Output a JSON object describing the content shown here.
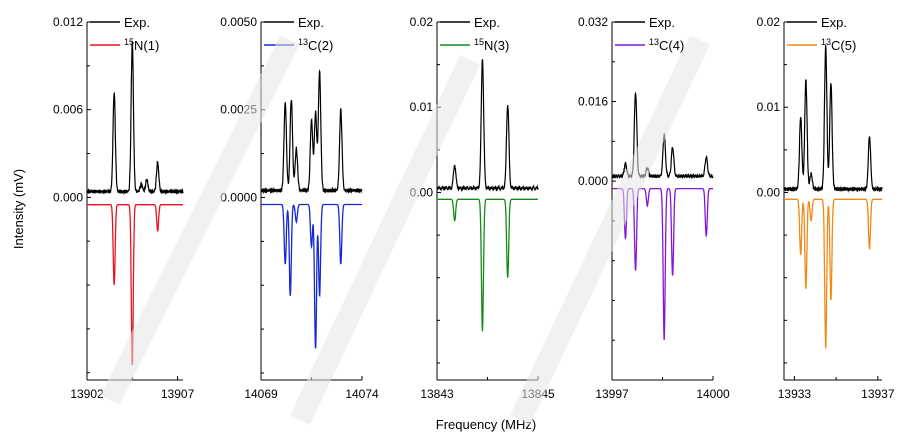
{
  "chart_data": {
    "type": "line",
    "ylabel": "Intensity (mV)",
    "xlabel": "Frequency (MHz)",
    "panels": [
      {
        "id": "15N(1)",
        "ylim": [
          -0.0125,
          0.012
        ],
        "yticks": [
          0.0,
          0.006,
          0.012
        ],
        "ytick_labels": [
          "0.000",
          "0.006",
          "0.012"
        ],
        "xlim": [
          13902,
          13907.3
        ],
        "xticks": [
          13902,
          13907
        ],
        "xtick_labels": [
          "13902",
          "13907"
        ],
        "exp_offset": 0.0004,
        "sim_offset": -0.0005,
        "legend": {
          "exp": "Exp.",
          "sim_sup": "15",
          "sim": "N(1)"
        },
        "sim_color": "#e8141c",
        "exp_peaks": [
          [
            13903.5,
            0.0068
          ],
          [
            13904.5,
            0.0102
          ],
          [
            13905.0,
            0.0005
          ],
          [
            13905.3,
            0.0008
          ],
          [
            13905.9,
            0.002
          ]
        ],
        "sim_peaks": [
          [
            13903.5,
            0.0055
          ],
          [
            13904.5,
            0.011
          ],
          [
            13905.9,
            0.0018
          ]
        ]
      },
      {
        "id": "13C(2)",
        "ylim": [
          -0.0052,
          0.005
        ],
        "yticks": [
          0.0,
          0.0025,
          0.005
        ],
        "ytick_labels": [
          "0.0000",
          "0.0025",
          "0.0050"
        ],
        "xlim": [
          14069,
          14074
        ],
        "xticks": [
          14069,
          14074
        ],
        "xtick_labels": [
          "14069",
          "14074"
        ],
        "exp_offset": 0.0002,
        "sim_offset": -0.0002,
        "legend": {
          "exp": "Exp.",
          "sim_sup": "13",
          "sim": "C(2)"
        },
        "sim_color": "#1526d6",
        "exp_peaks": [
          [
            14070.2,
            0.0025
          ],
          [
            14070.5,
            0.0026
          ],
          [
            14070.75,
            0.0012
          ],
          [
            14071.5,
            0.002
          ],
          [
            14071.7,
            0.0022
          ],
          [
            14071.9,
            0.0034
          ],
          [
            14072.95,
            0.0023
          ]
        ],
        "sim_peaks": [
          [
            14070.2,
            0.0017
          ],
          [
            14070.45,
            0.0026
          ],
          [
            14070.75,
            0.0005
          ],
          [
            14071.5,
            0.0012
          ],
          [
            14071.7,
            0.0041
          ],
          [
            14071.9,
            0.0026
          ],
          [
            14072.95,
            0.0017
          ]
        ]
      },
      {
        "id": "15N(3)",
        "ylim": [
          -0.022,
          0.02
        ],
        "yticks": [
          0.0,
          0.01,
          0.02
        ],
        "ytick_labels": [
          "0.00",
          "0.01",
          "0.02"
        ],
        "xlim": [
          13843,
          13845
        ],
        "xticks": [
          13843,
          13845
        ],
        "xtick_labels": [
          "13843",
          "13845"
        ],
        "exp_offset": 0.0005,
        "sim_offset": -0.0008,
        "legend": {
          "exp": "Exp.",
          "sim_sup": "15",
          "sim": "N(3)"
        },
        "sim_color": "#178a19",
        "exp_peaks": [
          [
            13843.35,
            0.0027
          ],
          [
            13843.9,
            0.0153
          ],
          [
            13844.4,
            0.0098
          ]
        ],
        "sim_peaks": [
          [
            13843.35,
            0.0025
          ],
          [
            13843.9,
            0.0155
          ],
          [
            13844.4,
            0.0092
          ]
        ]
      },
      {
        "id": "13C(4)",
        "ylim": [
          -0.04,
          0.032
        ],
        "yticks": [
          0.0,
          0.016,
          0.032
        ],
        "ytick_labels": [
          "0.000",
          "0.016",
          "0.032"
        ],
        "xlim": [
          13997,
          14000
        ],
        "xticks": [
          13997,
          14000
        ],
        "xtick_labels": [
          "13997",
          "14000"
        ],
        "exp_offset": 0.001,
        "sim_offset": -0.0015,
        "legend": {
          "exp": "Exp.",
          "sim_sup": "13",
          "sim": "C(4)"
        },
        "sim_color": "#8317d6",
        "exp_peaks": [
          [
            13997.4,
            0.0025
          ],
          [
            13997.7,
            0.0168
          ],
          [
            13998.05,
            0.0016
          ],
          [
            13998.55,
            0.0085
          ],
          [
            13998.8,
            0.0058
          ],
          [
            13999.8,
            0.0038
          ]
        ],
        "sim_peaks": [
          [
            13997.4,
            0.01
          ],
          [
            13997.7,
            0.0165
          ],
          [
            13998.05,
            0.0035
          ],
          [
            13998.55,
            0.0305
          ],
          [
            13998.8,
            0.0175
          ],
          [
            13999.8,
            0.0095
          ]
        ]
      },
      {
        "id": "13C(5)",
        "ylim": [
          -0.022,
          0.02
        ],
        "yticks": [
          0.0,
          0.01,
          0.02
        ],
        "ytick_labels": [
          "0.00",
          "0.01",
          "0.02"
        ],
        "xlim": [
          13932.5,
          13937.2
        ],
        "xticks": [
          13933,
          13937
        ],
        "xtick_labels": [
          "13933",
          "13937"
        ],
        "exp_offset": 0.0004,
        "sim_offset": -0.0008,
        "legend": {
          "exp": "Exp.",
          "sim_sup": "13",
          "sim": "C(5)"
        },
        "sim_color": "#f08a17",
        "exp_peaks": [
          [
            13933.3,
            0.0085
          ],
          [
            13933.55,
            0.0128
          ],
          [
            13933.8,
            0.0018
          ],
          [
            13934.5,
            0.0168
          ],
          [
            13934.75,
            0.0125
          ],
          [
            13936.6,
            0.0062
          ]
        ],
        "sim_peaks": [
          [
            13933.3,
            0.0065
          ],
          [
            13933.55,
            0.0105
          ],
          [
            13933.8,
            0.0025
          ],
          [
            13934.5,
            0.0175
          ],
          [
            13934.75,
            0.0118
          ],
          [
            13936.6,
            0.0058
          ]
        ]
      }
    ]
  }
}
